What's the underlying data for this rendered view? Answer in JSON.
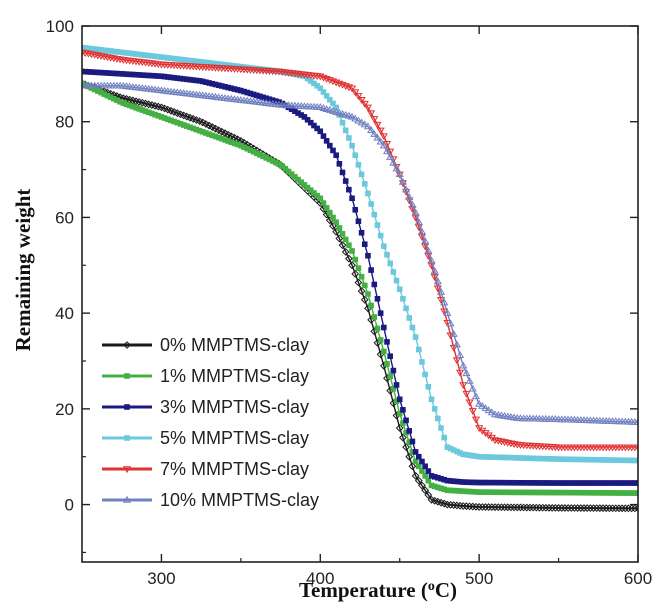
{
  "chart_data": {
    "type": "line",
    "title": "",
    "xlabel": "Temperature (",
    "xlabel_sup": "o",
    "xlabel_end": "C)",
    "ylabel": "Remaining weight",
    "xlim": [
      250,
      600
    ],
    "ylim": [
      -12,
      100
    ],
    "xticks": [
      300,
      400,
      500,
      600
    ],
    "yticks": [
      0,
      20,
      40,
      60,
      80,
      100
    ],
    "grid": false,
    "legend_position": "bottom-left",
    "series": [
      {
        "name": "0% MMPTMS-clay",
        "color": "#1a1a1a",
        "marker": "diamond",
        "x": [
          250,
          275,
          300,
          325,
          350,
          375,
          400,
          410,
          420,
          430,
          440,
          450,
          460,
          470,
          480,
          490,
          500,
          550,
          600
        ],
        "y": [
          88,
          85,
          83,
          80,
          76,
          71,
          63,
          57,
          50,
          41,
          29,
          16,
          6,
          1,
          0,
          -0.3,
          -0.5,
          -0.7,
          -0.8
        ]
      },
      {
        "name": "1% MMPTMS-clay",
        "color": "#44b044",
        "marker": "square",
        "x": [
          250,
          275,
          300,
          325,
          350,
          375,
          400,
          410,
          420,
          430,
          440,
          450,
          460,
          470,
          480,
          490,
          500,
          550,
          600
        ],
        "y": [
          88,
          84,
          81,
          78,
          75,
          71,
          64,
          59,
          53,
          44,
          32,
          19,
          9,
          4,
          3,
          2.8,
          2.6,
          2.5,
          2.4
        ]
      },
      {
        "name": "3% MMPTMS-clay",
        "color": "#1a1a80",
        "marker": "square",
        "x": [
          250,
          275,
          300,
          325,
          350,
          375,
          390,
          400,
          410,
          420,
          430,
          440,
          450,
          460,
          470,
          480,
          490,
          500,
          550,
          600
        ],
        "y": [
          90.5,
          90,
          89.5,
          88.5,
          86.5,
          84,
          81,
          78,
          73,
          64,
          52,
          37,
          22,
          11,
          6,
          5,
          4.7,
          4.6,
          4.5,
          4.5
        ]
      },
      {
        "name": "5% MMPTMS-clay",
        "color": "#6cc8dc",
        "marker": "square",
        "x": [
          250,
          275,
          300,
          325,
          350,
          375,
          390,
          400,
          410,
          420,
          430,
          440,
          450,
          460,
          470,
          480,
          490,
          500,
          550,
          600
        ],
        "y": [
          95.5,
          94.5,
          93.5,
          92.5,
          91.5,
          90.5,
          89.5,
          87,
          83,
          75,
          65,
          54,
          45,
          35,
          22,
          12,
          10.5,
          10,
          9.5,
          9.2
        ]
      },
      {
        "name": "7% MMPTMS-clay",
        "color": "#e03030",
        "marker": "triangle-down",
        "x": [
          250,
          275,
          300,
          325,
          350,
          375,
          400,
          420,
          430,
          440,
          450,
          460,
          470,
          480,
          490,
          500,
          510,
          525,
          550,
          600
        ],
        "y": [
          94.5,
          93,
          92,
          91.5,
          91,
          90.5,
          89.5,
          87,
          83,
          77,
          69,
          60,
          50,
          38,
          25,
          16,
          13.5,
          12.5,
          12,
          12
        ]
      },
      {
        "name": "10% MMPTMS-clay",
        "color": "#7080c0",
        "marker": "triangle-up",
        "x": [
          250,
          275,
          300,
          325,
          350,
          375,
          400,
          420,
          430,
          440,
          450,
          460,
          470,
          480,
          490,
          500,
          510,
          525,
          550,
          600
        ],
        "y": [
          87.5,
          87.5,
          86.5,
          85.5,
          84.5,
          83.5,
          83,
          81,
          79,
          75,
          69,
          61,
          51,
          40,
          29,
          21,
          18.8,
          18,
          17.8,
          17.2
        ]
      }
    ]
  }
}
